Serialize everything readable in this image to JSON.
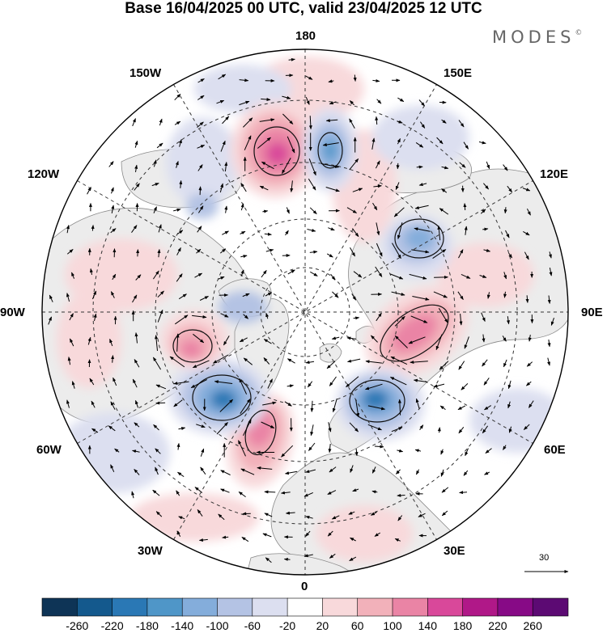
{
  "header": {
    "title": "Base 16/04/2025 00 UTC, valid 23/04/2025 12 UTC",
    "brand": "MODES",
    "brand_mark": "©"
  },
  "map": {
    "projection": "north polar stereographic",
    "longitude_labels": {
      "l180": "180",
      "l150e": "150E",
      "l120e": "120E",
      "l90e": "90E",
      "l60e": "60E",
      "l30e": "30E",
      "l0": "0",
      "l30w": "30W",
      "l60w": "60W",
      "l90w": "90W",
      "l120w": "120W",
      "l150w": "150W"
    },
    "anomaly_centers": [
      {
        "sign": "positive",
        "level": 180,
        "lon": "160W"
      },
      {
        "sign": "negative",
        "level": -180,
        "lon": "170E"
      },
      {
        "sign": "negative",
        "level": -140,
        "lon": "120E"
      },
      {
        "sign": "positive",
        "level": 140,
        "lon": "80E"
      },
      {
        "sign": "negative",
        "level": -180,
        "lon": "45E"
      },
      {
        "sign": "positive",
        "level": 140,
        "lon": "15W"
      },
      {
        "sign": "negative",
        "level": -180,
        "lon": "55W"
      },
      {
        "sign": "positive",
        "level": 100,
        "lon": "75W"
      }
    ]
  },
  "vector_scale": {
    "value": "30"
  },
  "colorbar": {
    "labels": [
      "-260",
      "-220",
      "-180",
      "-140",
      "-100",
      "-60",
      "-20",
      "20",
      "60",
      "100",
      "140",
      "180",
      "220",
      "260"
    ],
    "colors": [
      "#0e3456",
      "#14598d",
      "#2a78b5",
      "#4f96c8",
      "#84addb",
      "#b4c3e4",
      "#dcdff0",
      "#ffffff",
      "#f8d9db",
      "#f2b1ba",
      "#ea84a5",
      "#d9489a",
      "#b01888",
      "#870a86",
      "#5c0a73"
    ]
  },
  "colors": {
    "land": "#ececec",
    "neutral": "#ffffff"
  }
}
